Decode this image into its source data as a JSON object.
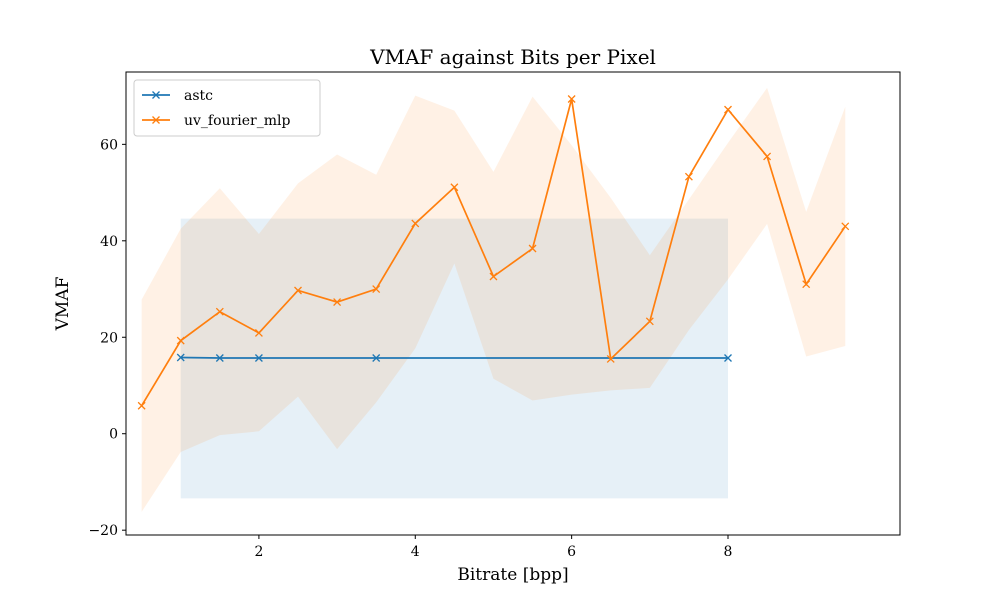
{
  "chart_data": {
    "type": "line",
    "title": "VMAF against Bits per Pixel",
    "xlabel": "Bitrate [bpp]",
    "ylabel": "VMAF",
    "xlim": [
      0.3,
      10.2
    ],
    "ylim": [
      -21,
      75
    ],
    "xticks": [
      2,
      4,
      6,
      8
    ],
    "yticks": [
      -20,
      0,
      20,
      40,
      60
    ],
    "legend_position": "top-left",
    "series": [
      {
        "name": "astc",
        "color": "#1f77b4",
        "x": [
          1.0,
          1.5,
          2.0,
          3.5,
          8.0
        ],
        "y": [
          15.8,
          15.7,
          15.7,
          15.7,
          15.7
        ],
        "band_upper": [
          44.6,
          44.6,
          44.6,
          44.6,
          44.6
        ],
        "band_lower": [
          -13.4,
          -13.4,
          -13.4,
          -13.4,
          -13.4
        ]
      },
      {
        "name": "uv_fourier_mlp",
        "color": "#ff7f0e",
        "x": [
          0.5,
          1.0,
          1.5,
          2.0,
          2.5,
          3.0,
          3.5,
          4.0,
          4.5,
          5.0,
          5.5,
          6.0,
          6.5,
          7.0,
          7.5,
          8.0,
          8.5,
          9.0,
          9.5
        ],
        "y": [
          5.8,
          19.3,
          25.3,
          20.9,
          29.7,
          27.3,
          30.0,
          43.6,
          51.1,
          32.6,
          38.4,
          69.4,
          15.5,
          23.3,
          53.3,
          67.2,
          57.5,
          31.0,
          43.0
        ],
        "band_upper": [
          27.8,
          42.5,
          50.9,
          41.4,
          51.9,
          57.9,
          53.7,
          70.1,
          67.0,
          54.3,
          69.9,
          59.8,
          48.9,
          37.0,
          48.6,
          60.3,
          71.7,
          46.0,
          67.8
        ],
        "band_lower": [
          -16.2,
          -3.8,
          -0.3,
          0.5,
          7.7,
          -3.2,
          6.5,
          17.7,
          35.3,
          11.4,
          6.9,
          8.1,
          9.0,
          9.5,
          21.5,
          32.0,
          43.5,
          16.0,
          18.2
        ]
      }
    ]
  }
}
